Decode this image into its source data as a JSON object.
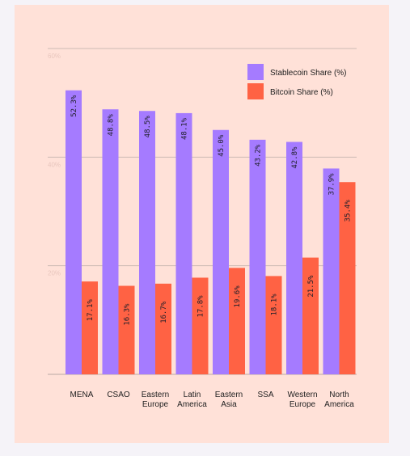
{
  "chart_data": {
    "type": "bar",
    "categories": [
      [
        "MENA"
      ],
      [
        "CSAO"
      ],
      [
        "Eastern",
        "Europe"
      ],
      [
        "Latin",
        "America"
      ],
      [
        "Eastern",
        "Asia"
      ],
      [
        "SSA"
      ],
      [
        "Western",
        "Europe"
      ],
      [
        "North",
        "America"
      ]
    ],
    "series": [
      {
        "name": "Stablecoin Share (%)",
        "color": "#a57bff",
        "values": [
          52.3,
          48.8,
          48.5,
          48.1,
          45.0,
          43.2,
          42.8,
          37.9
        ],
        "labels": [
          "52.3%",
          "48.8%",
          "48.5%",
          "48.1%",
          "45.0%",
          "43.2%",
          "42.8%",
          "37.9%"
        ]
      },
      {
        "name": "Bitcoin Share (%)",
        "color": "#ff6244",
        "values": [
          17.1,
          16.3,
          16.7,
          17.8,
          19.6,
          18.1,
          21.5,
          35.4
        ],
        "labels": [
          "17.1%",
          "16.3%",
          "16.7%",
          "17.8%",
          "19.6%",
          "18.1%",
          "21.5%",
          "35.4%"
        ]
      }
    ],
    "yticks": [
      {
        "value": 0,
        "label": ""
      },
      {
        "value": 20,
        "label": "20%"
      },
      {
        "value": 40,
        "label": "40%"
      },
      {
        "value": 60,
        "label": "60%"
      }
    ],
    "ylim": [
      0,
      60
    ],
    "grid": true,
    "legend_position": "top-right"
  }
}
